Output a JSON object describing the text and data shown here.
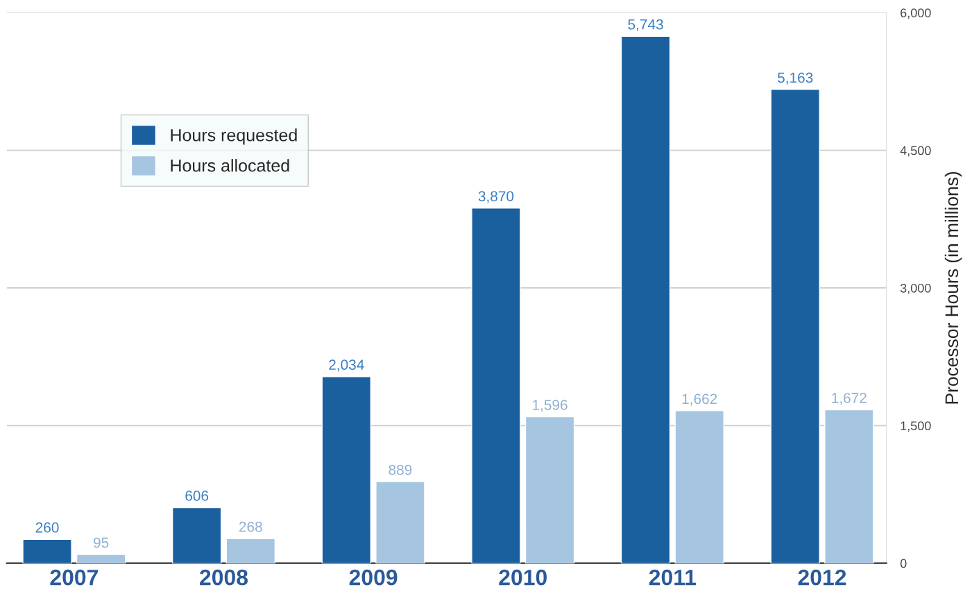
{
  "chart_data": {
    "type": "bar",
    "categories": [
      "2007",
      "2008",
      "2009",
      "2010",
      "2011",
      "2012"
    ],
    "series": [
      {
        "name": "Hours requested",
        "color": "#1a5f9e",
        "values": [
          260,
          606,
          2034,
          3870,
          5743,
          5163
        ]
      },
      {
        "name": "Hours allocated",
        "color": "#a6c5e1",
        "values": [
          95,
          268,
          889,
          1596,
          1662,
          1672
        ]
      }
    ],
    "ylabel": "Processor Hours (in millions)",
    "ylim": [
      0,
      6000
    ],
    "yticks": [
      {
        "value": 0,
        "label": "0"
      },
      {
        "value": 1500,
        "label": "1,500"
      },
      {
        "value": 3000,
        "label": "3,000"
      },
      {
        "value": 4500,
        "label": "4,500"
      },
      {
        "value": 6000,
        "label": "6,000"
      }
    ],
    "value_labels": [
      [
        "260",
        "606",
        "2,034",
        "3,870",
        "5,743",
        "5,163"
      ],
      [
        "95",
        "268",
        "889",
        "1,596",
        "1,662",
        "1,672"
      ]
    ],
    "grid": "y",
    "legend": "top left"
  }
}
